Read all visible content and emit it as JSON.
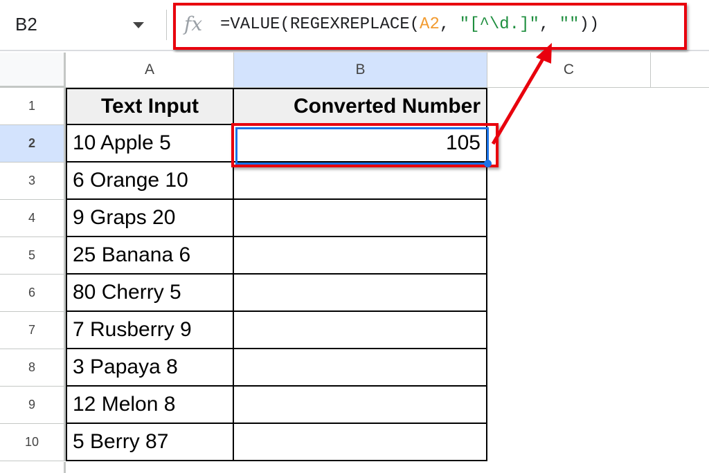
{
  "formula_bar": {
    "name_box": "B2",
    "fx_icon": "fx-icon",
    "formula_parts": [
      {
        "text": "=VALUE(REGEXREPLACE(",
        "color": "#202124"
      },
      {
        "text": "A2",
        "color": "#f29b30"
      },
      {
        "text": ", ",
        "color": "#202124"
      },
      {
        "text": "\"[^\\d.]\"",
        "color": "#1e8e3e"
      },
      {
        "text": ", ",
        "color": "#202124"
      },
      {
        "text": "\"\"",
        "color": "#1e8e3e"
      },
      {
        "text": "))",
        "color": "#202124"
      }
    ]
  },
  "columns": [
    "A",
    "B",
    "C"
  ],
  "rows": [
    "1",
    "2",
    "3",
    "4",
    "5",
    "6",
    "7",
    "8",
    "9",
    "10"
  ],
  "table": {
    "headers": [
      "Text Input",
      "Converted Number"
    ],
    "values": [
      "10 Apple 5",
      "6 Orange 10",
      "9 Graps 20",
      "25 Banana 6",
      "80 Cherry 5",
      "7 Rusberry 9",
      "3 Papaya 8",
      "12 Melon 8",
      "5 Berry 87"
    ],
    "converted": [
      "105",
      "",
      "",
      "",
      "",
      "",
      "",
      "",
      ""
    ]
  },
  "colors": {
    "highlight": "#e8000d",
    "selection": "#1a73e8",
    "selected_header": "#d3e3fd"
  }
}
